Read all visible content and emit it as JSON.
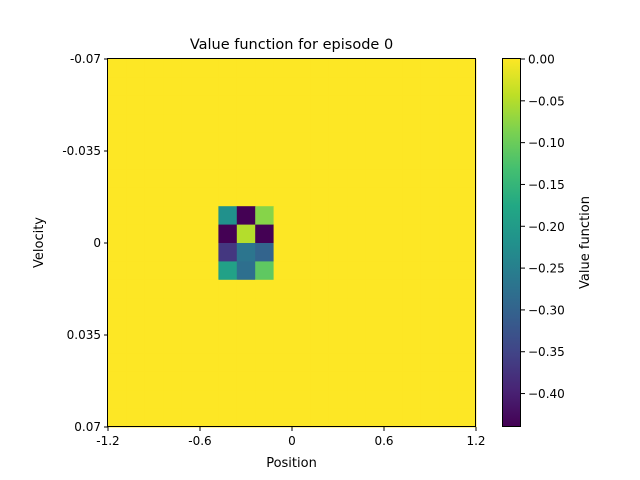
{
  "chart_data": {
    "type": "heatmap",
    "title": "Value function for episode 0",
    "xlabel": "Position",
    "ylabel": "Velocity",
    "x_ticks": [
      "-1.2",
      "-0.6",
      "0",
      "0.6",
      "1.2"
    ],
    "y_ticks": [
      "-0.07",
      "-0.035",
      "0",
      "0.035",
      "0.07"
    ],
    "xlim": [
      -1.2,
      1.2
    ],
    "ylim": [
      -0.07,
      0.07
    ],
    "y_axis_inverted": true,
    "grid_rows": 20,
    "grid_cols": 20,
    "default_value": 0.0,
    "nonzero_cells": [
      {
        "row": 8,
        "col": 6,
        "value": -0.22
      },
      {
        "row": 8,
        "col": 7,
        "value": -0.44
      },
      {
        "row": 8,
        "col": 8,
        "value": -0.08
      },
      {
        "row": 9,
        "col": 6,
        "value": -0.44
      },
      {
        "row": 9,
        "col": 7,
        "value": -0.05
      },
      {
        "row": 9,
        "col": 8,
        "value": -0.44
      },
      {
        "row": 10,
        "col": 6,
        "value": -0.37
      },
      {
        "row": 10,
        "col": 7,
        "value": -0.27
      },
      {
        "row": 10,
        "col": 8,
        "value": -0.3
      },
      {
        "row": 11,
        "col": 6,
        "value": -0.19
      },
      {
        "row": 11,
        "col": 7,
        "value": -0.28
      },
      {
        "row": 11,
        "col": 8,
        "value": -0.11
      }
    ],
    "colorbar": {
      "label": "Value function",
      "colormap": "viridis",
      "vmin": -0.44,
      "vmax": 0.0,
      "ticks": [
        "0.00",
        "−0.05",
        "−0.10",
        "−0.15",
        "−0.20",
        "−0.25",
        "−0.30",
        "−0.35",
        "−0.40"
      ],
      "tick_values": [
        0.0,
        -0.05,
        -0.1,
        -0.15,
        -0.2,
        -0.25,
        -0.3,
        -0.35,
        -0.4
      ]
    },
    "grid": false
  }
}
